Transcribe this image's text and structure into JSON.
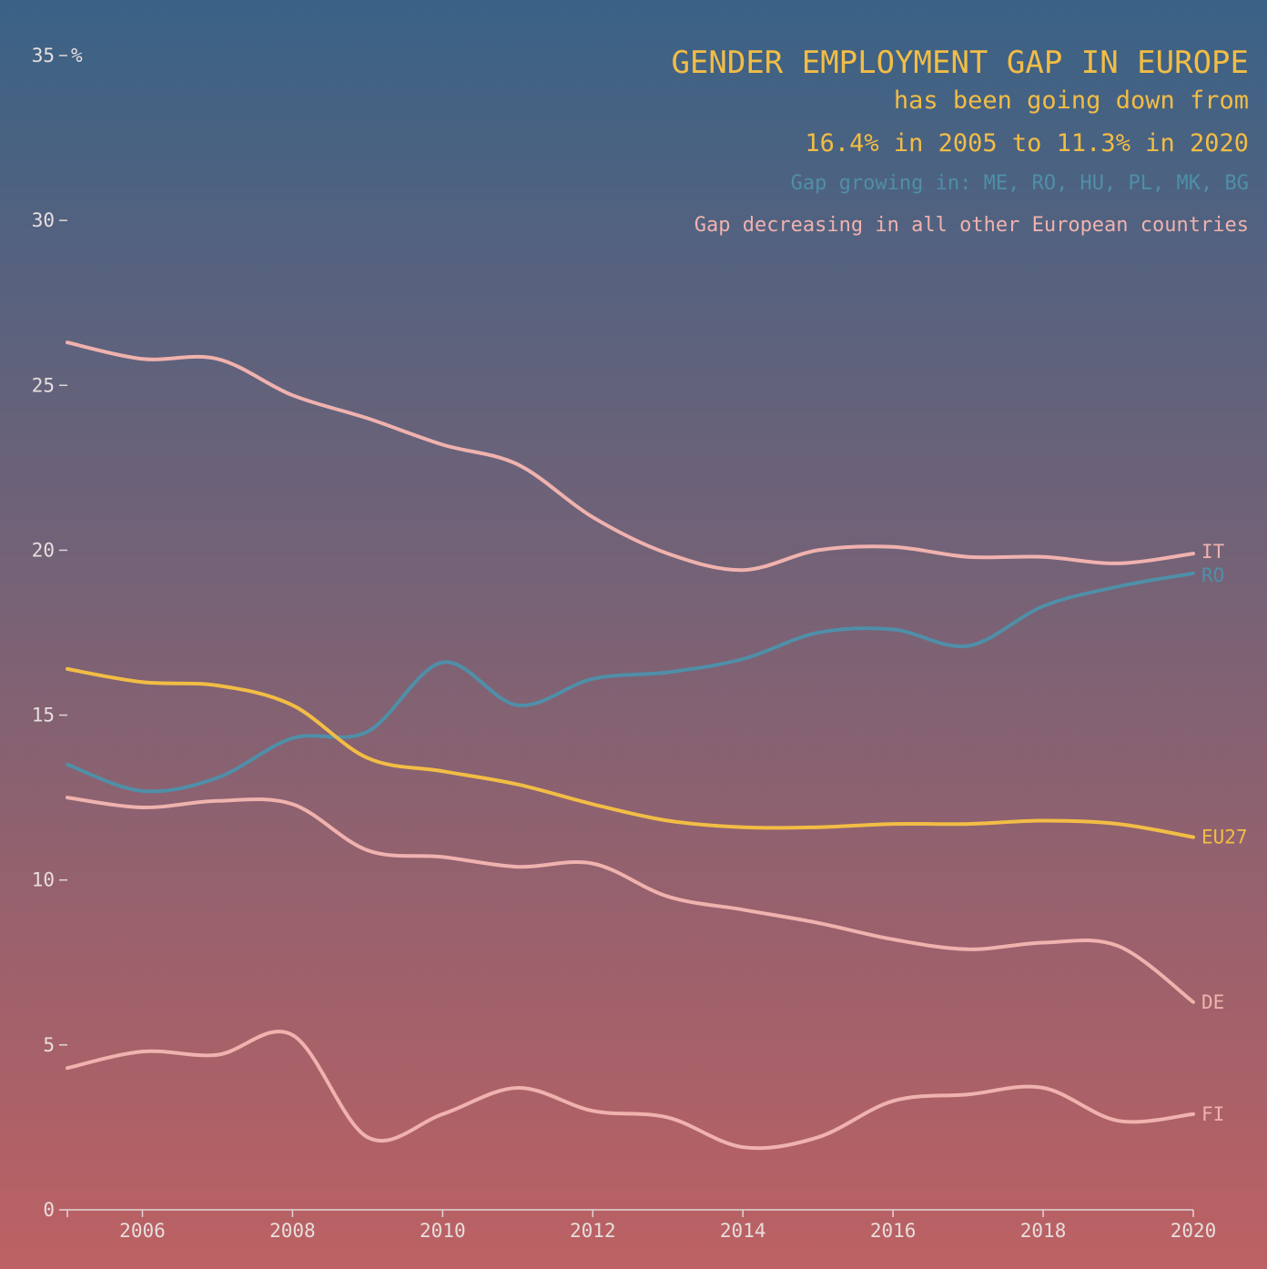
{
  "chart_data": {
    "type": "line",
    "title": "GENDER EMPLOYMENT GAP IN EUROPE",
    "subtitle_line1": "has been going down from",
    "subtitle_line2": "16.4% in 2005 to 11.3% in 2020",
    "note_growing": "Gap growing in: ME, RO, HU, PL, MK, BG",
    "note_decreasing": "Gap decreasing in all other European countries",
    "ylabel": "%",
    "xlim": [
      2005,
      2020
    ],
    "ylim": [
      0,
      35
    ],
    "x_ticks": [
      2006,
      2008,
      2010,
      2012,
      2014,
      2016,
      2018,
      2020
    ],
    "y_ticks": [
      0,
      5,
      10,
      15,
      20,
      25,
      30,
      35
    ],
    "grid": false,
    "x": [
      2005,
      2006,
      2007,
      2008,
      2009,
      2010,
      2011,
      2012,
      2013,
      2014,
      2015,
      2016,
      2017,
      2018,
      2019,
      2020
    ],
    "series": [
      {
        "name": "IT",
        "color": "#f0b2ae",
        "values": [
          26.3,
          25.8,
          25.8,
          24.7,
          24.0,
          23.2,
          22.6,
          21.0,
          19.9,
          19.4,
          20.0,
          20.1,
          19.8,
          19.8,
          19.6,
          19.9
        ]
      },
      {
        "name": "RO",
        "color": "#4f8fa8",
        "values": [
          13.5,
          12.7,
          13.1,
          14.3,
          14.5,
          16.6,
          15.3,
          16.1,
          16.3,
          16.7,
          17.5,
          17.6,
          17.1,
          18.3,
          18.9,
          19.3
        ]
      },
      {
        "name": "EU27",
        "color": "#f2bd45",
        "values": [
          16.4,
          16.0,
          15.9,
          15.3,
          13.7,
          13.3,
          12.9,
          12.3,
          11.8,
          11.6,
          11.6,
          11.7,
          11.7,
          11.8,
          11.7,
          11.3
        ]
      },
      {
        "name": "DE",
        "color": "#f0b2ae",
        "values": [
          12.5,
          12.2,
          12.4,
          12.3,
          10.9,
          10.7,
          10.4,
          10.5,
          9.5,
          9.1,
          8.7,
          8.2,
          7.9,
          8.1,
          8.0,
          6.3
        ]
      },
      {
        "name": "FI",
        "color": "#f0b2ae",
        "values": [
          4.3,
          4.8,
          4.7,
          5.3,
          2.2,
          2.9,
          3.7,
          3.0,
          2.8,
          1.9,
          2.2,
          3.3,
          3.5,
          3.7,
          2.7,
          2.9
        ]
      }
    ]
  },
  "colors": {
    "background_top": "#3a6286",
    "background_bottom": "#bd6163",
    "axis": "#e0d6d6",
    "highlight": "#f2bd45",
    "growing": "#4f8fa8",
    "decreasing": "#f0b2ae"
  }
}
